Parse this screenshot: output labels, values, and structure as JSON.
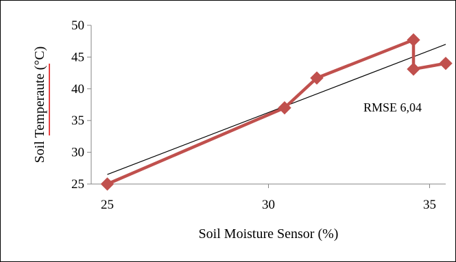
{
  "chart_data": {
    "type": "scatter",
    "xlabel": "Soil Moisture Sensor (%)",
    "ylabel": "Soil Temperaute (°C)",
    "xlim": [
      24.5,
      35.5
    ],
    "ylim": [
      25,
      50
    ],
    "xticks": [
      25,
      30,
      35
    ],
    "yticks": [
      25,
      30,
      35,
      40,
      45,
      50
    ],
    "grid": false,
    "legend": "none",
    "series": [
      {
        "points": [
          {
            "x": 25.0,
            "y": 25.0
          },
          {
            "x": 30.5,
            "y": 37.0
          },
          {
            "x": 31.5,
            "y": 41.7
          },
          {
            "x": 34.5,
            "y": 47.7
          },
          {
            "x": 34.5,
            "y": 43.1
          },
          {
            "x": 35.5,
            "y": 44.0
          }
        ],
        "color": "#c0504d",
        "marker": "diamond",
        "connected": true
      }
    ],
    "trendline": {
      "type": "linear",
      "from": {
        "x": 25.0,
        "y": 26.5
      },
      "to": {
        "x": 35.5,
        "y": 47.0
      },
      "color": "#000000"
    },
    "annotations": [
      {
        "text": "RMSE 6,04"
      }
    ],
    "colors": {
      "series": "#c0504d",
      "trendline": "#000000",
      "axis": "#868686",
      "spellcheck_underline": "#e00000"
    }
  }
}
